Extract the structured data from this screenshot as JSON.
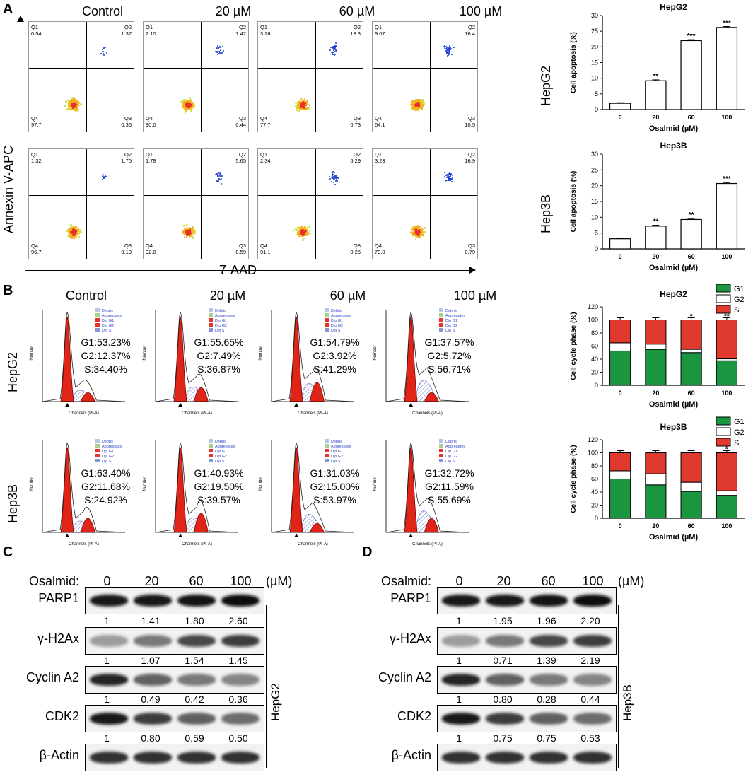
{
  "panel_labels": {
    "a": "A",
    "b": "B",
    "c": "C",
    "d": "D"
  },
  "flow": {
    "columns": [
      "Control",
      "20 µM",
      "60 µM",
      "100 µM"
    ],
    "rows": [
      "HepG2",
      "Hep3B"
    ],
    "ylabel": "Annexin V-APC",
    "xlabel": "7-AAD",
    "quadrant_names": [
      "Q1",
      "Q2",
      "Q3",
      "Q4"
    ],
    "quadrants": [
      [
        [
          "0.54",
          "1.37",
          "0.36",
          "97.7"
        ],
        [
          "2.10",
          "7.42",
          "0.44",
          "90.0"
        ],
        [
          "3.26",
          "18.3",
          "0.73",
          "77.7"
        ],
        [
          "9.07",
          "16.4",
          "10.5",
          "64.1"
        ]
      ],
      [
        [
          "1.32",
          "1.75",
          "0.19",
          "96.7"
        ],
        [
          "1.78",
          "5.65",
          "0.59",
          "92.0"
        ],
        [
          "2.34",
          "6.29",
          "0.25",
          "91.1"
        ],
        [
          "3.23",
          "16.9",
          "0.79",
          "79.0"
        ]
      ]
    ]
  },
  "cycle": {
    "columns": [
      "Control",
      "20 µM",
      "60 µM",
      "100 µM"
    ],
    "rows": [
      "HepG2",
      "Hep3B"
    ],
    "legend": [
      "Debris",
      "Aggregates",
      "Dip G1",
      "Dip G2",
      "Dip S"
    ],
    "x_axis": "Channels (PI-A)",
    "y_axis": "Number",
    "pct": [
      [
        [
          "G1:53.23%",
          "G2:12.37%",
          "S:34.40%"
        ],
        [
          "G1:55.65%",
          "G2:7.49%",
          "S:36.87%"
        ],
        [
          "G1:54.79%",
          "G2:3.92%",
          "S:41.29%"
        ],
        [
          "G1:37.57%",
          "G2:5.72%",
          "S:56.71%"
        ]
      ],
      [
        [
          "G1:63.40%",
          "G2:11.68%",
          "S:24.92%"
        ],
        [
          "G1:40.93%",
          "G2:19.50%",
          "S:39.57%"
        ],
        [
          "G1:31.03%",
          "G2:15.00%",
          "S:53.97%"
        ],
        [
          "G1:32.72%",
          "G2:11.59%",
          "S:55.69%"
        ]
      ]
    ]
  },
  "chart_data": [
    {
      "type": "bar",
      "title": "HepG2",
      "categories": [
        "0",
        "20",
        "60",
        "100"
      ],
      "values": [
        2,
        9.2,
        22,
        26.2
      ],
      "errors": [
        0.2,
        0.3,
        0.3,
        0.3
      ],
      "significance": [
        "",
        "**",
        "***",
        "***"
      ],
      "xlabel": "Osalmid (µM)",
      "ylabel": "Cell apoptosis (%)",
      "ylim": [
        0,
        30
      ],
      "yticks": [
        0,
        5,
        10,
        15,
        20,
        25,
        30
      ],
      "bar_color": "#ffffff"
    },
    {
      "type": "bar",
      "title": "Hep3B",
      "categories": [
        "0",
        "20",
        "60",
        "100"
      ],
      "values": [
        3.2,
        7.2,
        9.3,
        20.7
      ],
      "errors": [
        0.1,
        0.3,
        0.3,
        0.3
      ],
      "significance": [
        "",
        "**",
        "**",
        "***"
      ],
      "xlabel": "Osalmid (µM)",
      "ylabel": "Cell apoptosis (%)",
      "ylim": [
        0,
        30
      ],
      "yticks": [
        0,
        5,
        10,
        15,
        20,
        25,
        30
      ],
      "bar_color": "#ffffff"
    },
    {
      "type": "bar",
      "stacked": true,
      "title": "HepG2",
      "categories": [
        "0",
        "20",
        "60",
        "100"
      ],
      "series": [
        {
          "name": "G1",
          "values": [
            52.5,
            55,
            50,
            37.5
          ],
          "color": "#1a9641"
        },
        {
          "name": "G2",
          "values": [
            12.5,
            8,
            5,
            3
          ],
          "color": "#ffffff"
        },
        {
          "name": "S",
          "values": [
            35,
            37,
            45,
            59.5
          ],
          "color": "#e03a2f"
        }
      ],
      "significance": [
        "",
        "",
        "*",
        "**"
      ],
      "xlabel": "Osalmid (µM)",
      "ylabel": "Cell cycle phase (%)",
      "ylim": [
        0,
        120
      ],
      "yticks": [
        0,
        20,
        40,
        60,
        80,
        100,
        120
      ]
    },
    {
      "type": "bar",
      "stacked": true,
      "title": "Hep3B",
      "categories": [
        "0",
        "20",
        "60",
        "100"
      ],
      "series": [
        {
          "name": "G1",
          "values": [
            60,
            51,
            41,
            35
          ],
          "color": "#1a9641"
        },
        {
          "name": "G2",
          "values": [
            12.5,
            17,
            14,
            7
          ],
          "color": "#ffffff"
        },
        {
          "name": "S",
          "values": [
            27.5,
            32,
            45,
            58
          ],
          "color": "#e03a2f"
        }
      ],
      "significance": [
        "",
        "",
        "",
        "*"
      ],
      "xlabel": "Osalmid (µM)",
      "ylabel": "Cell cycle phase (%)",
      "ylim": [
        0,
        120
      ],
      "yticks": [
        0,
        20,
        40,
        60,
        80,
        100,
        120
      ]
    }
  ],
  "western": {
    "c": {
      "title": "Osalmid:",
      "conc": [
        "0",
        "20",
        "60",
        "100"
      ],
      "unit": "(µM)",
      "cell": "HepG2",
      "proteins": [
        "PARP1",
        "γ-H2Ax",
        "Cyclin A2",
        "CDK2",
        "β-Actin"
      ],
      "quant": [
        [
          "1",
          "1.41",
          "1.80",
          "2.60"
        ],
        [
          "1",
          "1.07",
          "1.54",
          "1.45"
        ],
        [
          "1",
          "0.49",
          "0.42",
          "0.36"
        ],
        [
          "1",
          "0.80",
          "0.59",
          "0.50"
        ]
      ]
    },
    "d": {
      "title": "Osalmid:",
      "conc": [
        "0",
        "20",
        "60",
        "100"
      ],
      "unit": "(µM)",
      "cell": "Hep3B",
      "proteins": [
        "PARP1",
        "γ-H2Ax",
        "Cyclin A2",
        "CDK2",
        "β-Actin"
      ],
      "quant": [
        [
          "1",
          "1.95",
          "1.96",
          "2.20"
        ],
        [
          "1",
          "0.71",
          "1.39",
          "2.19"
        ],
        [
          "1",
          "0.80",
          "0.28",
          "0.44"
        ],
        [
          "1",
          "0.75",
          "0.75",
          "0.53"
        ]
      ]
    }
  }
}
